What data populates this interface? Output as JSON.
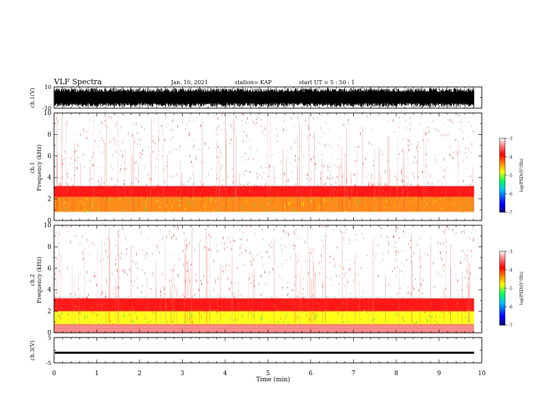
{
  "header": {
    "title": "VLF Spectra",
    "date": "Jan. 10, 2021",
    "station": "station= KAP",
    "start": "start  UT =   5 : 50 : 1"
  },
  "chart_data": [
    {
      "type": "line",
      "ylabel": "ch.1(V)",
      "ylim": [
        -10,
        10
      ],
      "yticks": [
        "10",
        "-10"
      ],
      "amplitude_envelope": [
        -9,
        9
      ]
    },
    {
      "type": "heatmap",
      "ylabel_line1": "ch.1",
      "ylabel_line2": "Frequency (kHz)",
      "ylim": [
        0,
        10
      ],
      "yticks": [
        "0",
        "2",
        "4",
        "6",
        "8",
        "10"
      ],
      "colorbar_label": "log(PSD)(V²/Hz)",
      "colorbar_ticks": [
        "-3",
        "-4",
        "-5",
        "-6",
        "-7"
      ],
      "colorbar_range": [
        -7,
        -3
      ],
      "colors": [
        "#000080",
        "#0000ff",
        "#00c0ff",
        "#00ff60",
        "#ffff00",
        "#ff8000",
        "#ff0000",
        "#ff6060",
        "#ffffff"
      ],
      "bands": [
        {
          "fmin": 0.0,
          "fmax": 0.8,
          "level": -3.2
        },
        {
          "fmin": 0.8,
          "fmax": 2.2,
          "level": -4.6
        },
        {
          "fmin": 2.2,
          "fmax": 3.2,
          "level": -3.8
        },
        {
          "fmin": 3.2,
          "fmax": 10.0,
          "level": -3.1
        }
      ],
      "time_extent_min": 9.82
    },
    {
      "type": "heatmap",
      "ylabel_line1": "ch.2",
      "ylabel_line2": "Frequency (kHz)",
      "ylim": [
        0,
        10
      ],
      "yticks": [
        "0",
        "2",
        "4",
        "6",
        "8",
        "10"
      ],
      "colorbar_label": "log(PSD)(V²/Hz)",
      "colorbar_ticks": [
        "-3",
        "-4",
        "-5",
        "-6",
        "-7"
      ],
      "colorbar_range": [
        -7,
        -3
      ],
      "colors": [
        "#000080",
        "#0000ff",
        "#00c0ff",
        "#00ff60",
        "#ffff00",
        "#ff8000",
        "#ff0000",
        "#ff6060",
        "#ffffff"
      ],
      "bands": [
        {
          "fmin": 0.0,
          "fmax": 0.8,
          "level": -3.4
        },
        {
          "fmin": 0.8,
          "fmax": 2.0,
          "level": -5.0
        },
        {
          "fmin": 2.0,
          "fmax": 3.2,
          "level": -3.8
        },
        {
          "fmin": 3.2,
          "fmax": 10.0,
          "level": -3.1
        }
      ],
      "time_extent_min": 9.82
    },
    {
      "type": "line",
      "ylabel": "ch.3(V)",
      "ylim": [
        -5,
        5
      ],
      "yticks": [
        "5",
        "-5"
      ],
      "amplitude_envelope": [
        -1.4,
        -0.6
      ]
    }
  ],
  "xaxis": {
    "label": "Time (min)",
    "xlim": [
      0,
      10
    ],
    "ticks": [
      "0",
      "1",
      "2",
      "3",
      "4",
      "5",
      "6",
      "7",
      "8",
      "9",
      "10"
    ]
  }
}
